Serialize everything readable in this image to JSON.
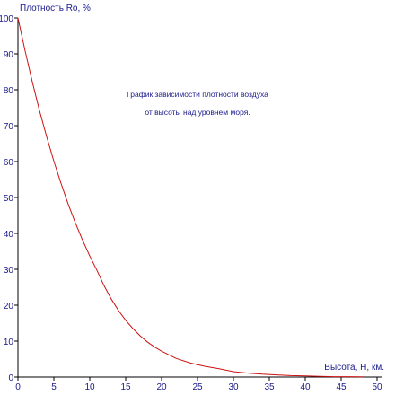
{
  "chart_data": {
    "type": "line",
    "ylabel": "Плотность Ro, %",
    "xlabel": "Высота, Н, км.",
    "title_lines": [
      "График зависимости плотности воздуха",
      "от высоты над уровнем моря."
    ],
    "xlim": [
      0,
      50
    ],
    "ylim": [
      0,
      100
    ],
    "x_ticks": [
      0,
      5,
      10,
      15,
      20,
      25,
      30,
      35,
      40,
      45,
      50
    ],
    "y_ticks": [
      0,
      10,
      20,
      30,
      40,
      50,
      60,
      70,
      80,
      90,
      100
    ],
    "line_color": "#cc1111",
    "axis_color": "#000000",
    "text_color": "#1a1a8c",
    "grid": false,
    "series": [
      {
        "x": [
          0,
          1,
          2,
          3,
          4,
          5,
          6,
          7,
          8,
          9,
          10,
          11,
          12,
          13,
          14,
          15,
          16,
          17,
          18,
          19,
          20,
          22,
          24,
          26,
          28,
          30,
          32,
          34,
          36,
          38,
          40,
          42,
          44,
          46,
          48
        ],
        "y": [
          100,
          90.8,
          82.2,
          74.2,
          66.9,
          60.1,
          53.9,
          48.1,
          42.9,
          38.1,
          33.7,
          29.7,
          25.4,
          21.7,
          18.5,
          15.8,
          13.5,
          11.5,
          9.8,
          8.4,
          7.2,
          5.2,
          3.9,
          3.0,
          2.3,
          1.5,
          1.1,
          0.8,
          0.6,
          0.4,
          0.3,
          0.2,
          0.1,
          0.1,
          0.05
        ]
      }
    ]
  }
}
